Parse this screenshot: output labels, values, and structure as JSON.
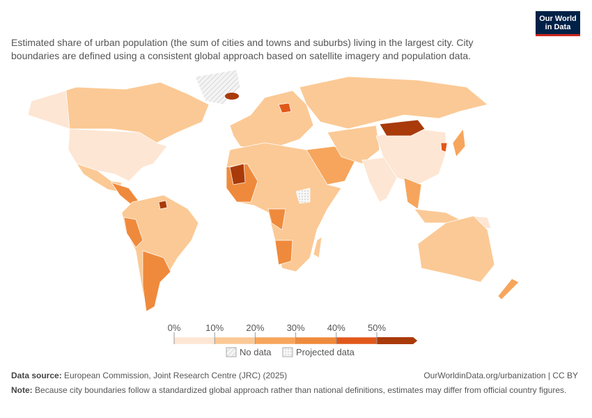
{
  "header": {
    "subtitle": "Estimated share of urban population (the sum of cities and towns and suburbs) living in the largest city. City boundaries are defined using a consistent global approach based on satellite imagery and population data.",
    "logo": [
      "Our World",
      "in Data"
    ]
  },
  "legend": {
    "ticks": [
      {
        "value": 0,
        "label": "0%"
      },
      {
        "value": 10,
        "label": "10%"
      },
      {
        "value": 20,
        "label": "20%"
      },
      {
        "value": 30,
        "label": "30%"
      },
      {
        "value": 40,
        "label": "40%"
      },
      {
        "value": 50,
        "label": "50%"
      }
    ],
    "colors": [
      "#fde6d4",
      "#fbc995",
      "#f7a55c",
      "#ef8a3c",
      "#e1581b",
      "#a93a0a"
    ],
    "no_data": "No data",
    "projected": "Projected data"
  },
  "footer": {
    "source_label": "Data source:",
    "source": "European Commission, Joint Research Centre (JRC) (2025)",
    "url": "OurWorldinData.org/urbanization | CC BY",
    "note_label": "Note:",
    "note": "Because city boundaries follow a standardized global approach rather than national definitions, estimates may differ from official country figures."
  }
}
